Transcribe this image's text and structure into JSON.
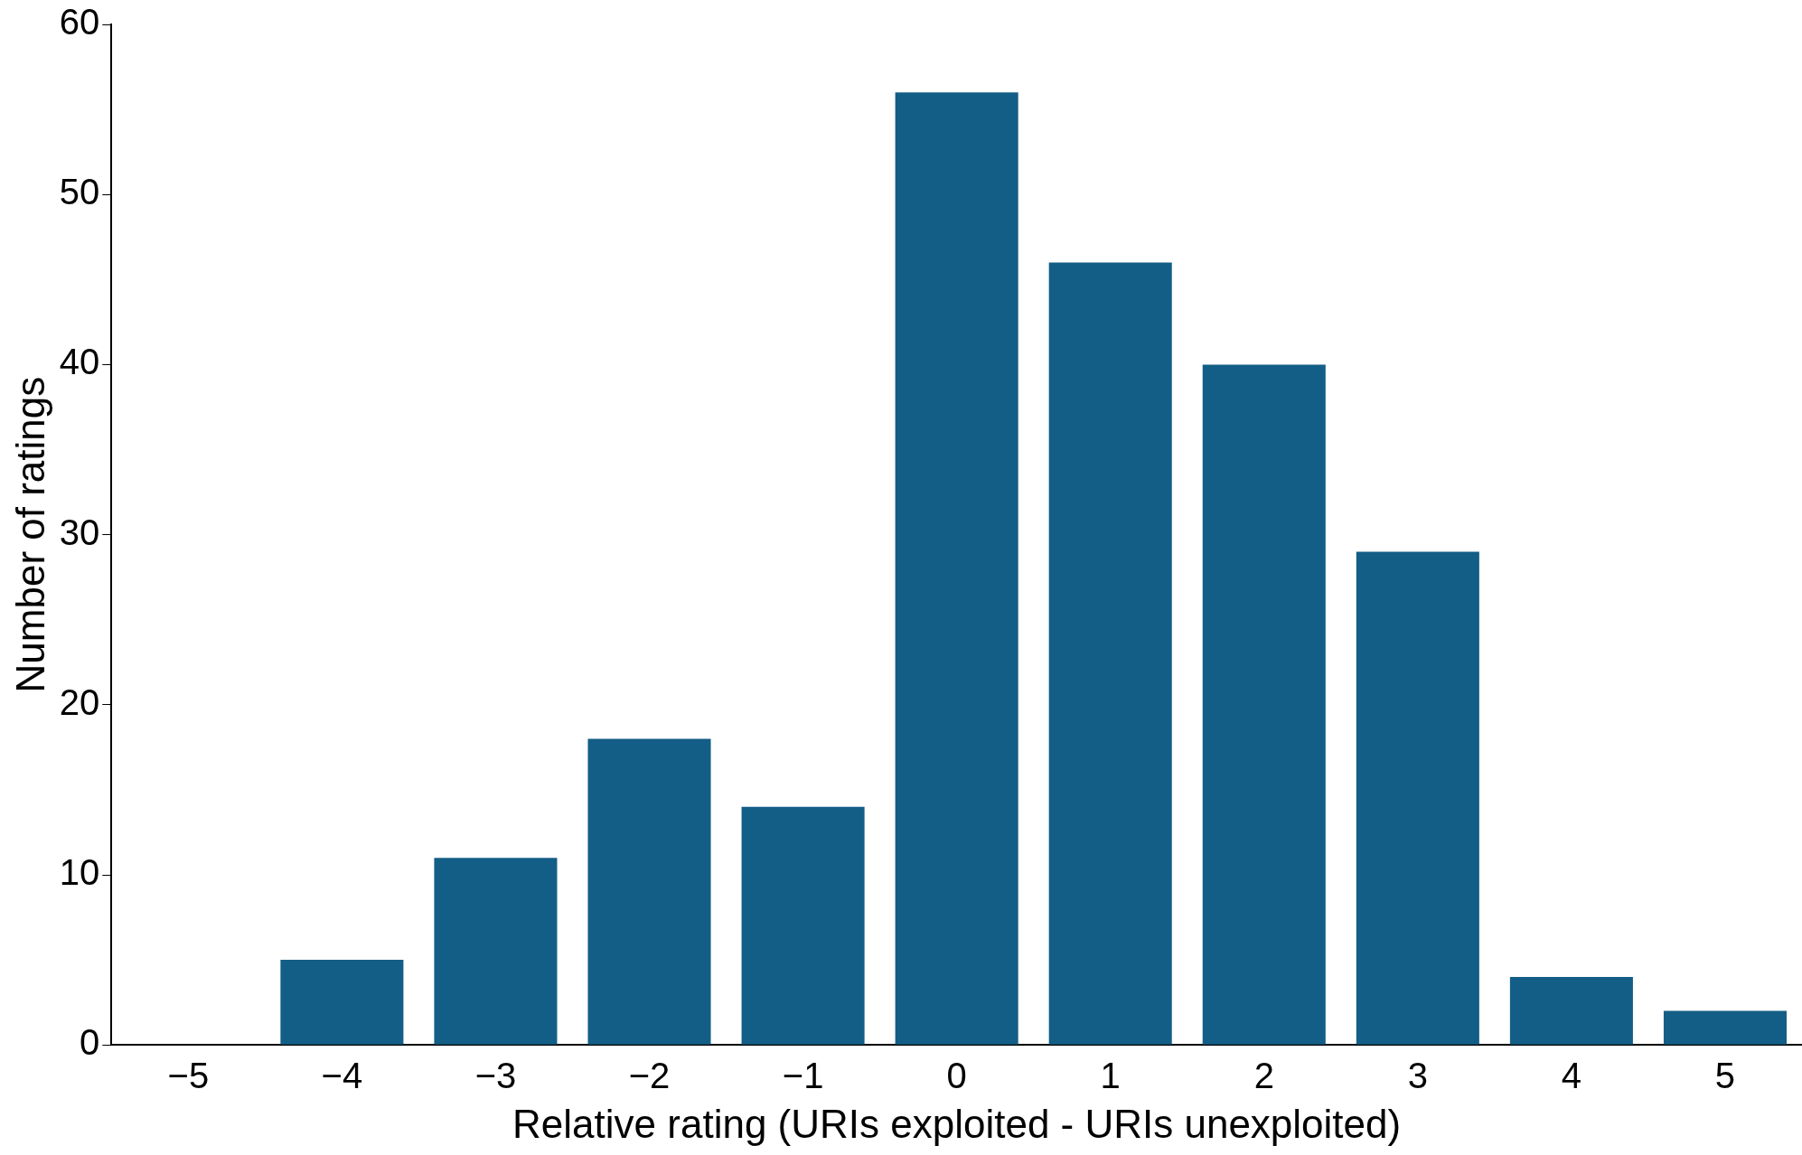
{
  "chart_data": {
    "type": "bar",
    "xlabel": "Relative rating (URIs exploited - URIs unexploited)",
    "ylabel": "Number of ratings",
    "categories": [
      "−5",
      "−4",
      "−3",
      "−2",
      "−1",
      "0",
      "1",
      "2",
      "3",
      "4",
      "5"
    ],
    "values": [
      0,
      5,
      11,
      18,
      14,
      56,
      46,
      40,
      29,
      4,
      2
    ],
    "color": "#135e86",
    "ylim": [
      0,
      60
    ],
    "yticks": [
      0,
      10,
      20,
      30,
      40,
      50,
      60
    ]
  }
}
